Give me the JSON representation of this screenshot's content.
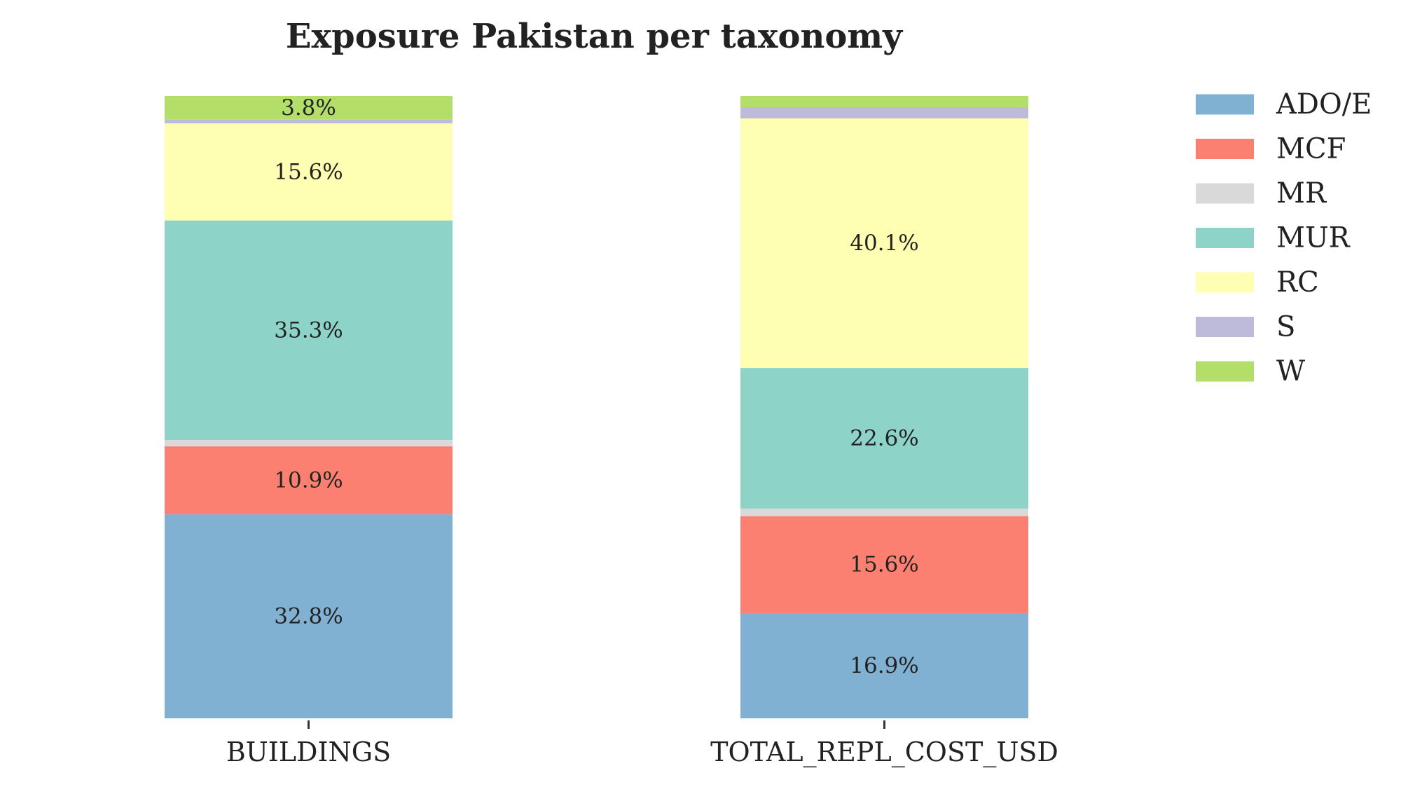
{
  "chart_data": {
    "type": "bar",
    "stacked": true,
    "normalized": true,
    "title": "Exposure Pakistan per taxonomy",
    "xlabel": "",
    "ylabel": "",
    "ylim": [
      0,
      100
    ],
    "grid": false,
    "legend_placement": "right",
    "categories": [
      "BUILDINGS",
      "TOTAL_REPL_COST_USD"
    ],
    "series": [
      {
        "name": "ADO/E",
        "color": "#80b1d3",
        "values": [
          32.8,
          16.9
        ],
        "labels": [
          "32.8%",
          "16.9%"
        ]
      },
      {
        "name": "MCF",
        "color": "#fb8072",
        "values": [
          10.9,
          15.6
        ],
        "labels": [
          "10.9%",
          "15.6%"
        ]
      },
      {
        "name": "MR",
        "color": "#d9d9d9",
        "values": [
          1.0,
          1.2
        ],
        "labels": [
          "",
          ""
        ]
      },
      {
        "name": "MUR",
        "color": "#8dd3c7",
        "values": [
          35.3,
          22.6
        ],
        "labels": [
          "35.3%",
          "22.6%"
        ]
      },
      {
        "name": "RC",
        "color": "#ffffb3",
        "values": [
          15.6,
          40.1
        ],
        "labels": [
          "15.6%",
          "40.1%"
        ]
      },
      {
        "name": "S",
        "color": "#bebada",
        "values": [
          0.6,
          1.8
        ],
        "labels": [
          "",
          ""
        ]
      },
      {
        "name": "W",
        "color": "#b3de69",
        "values": [
          3.8,
          1.8
        ],
        "labels": [
          "3.8%",
          ""
        ]
      }
    ]
  }
}
